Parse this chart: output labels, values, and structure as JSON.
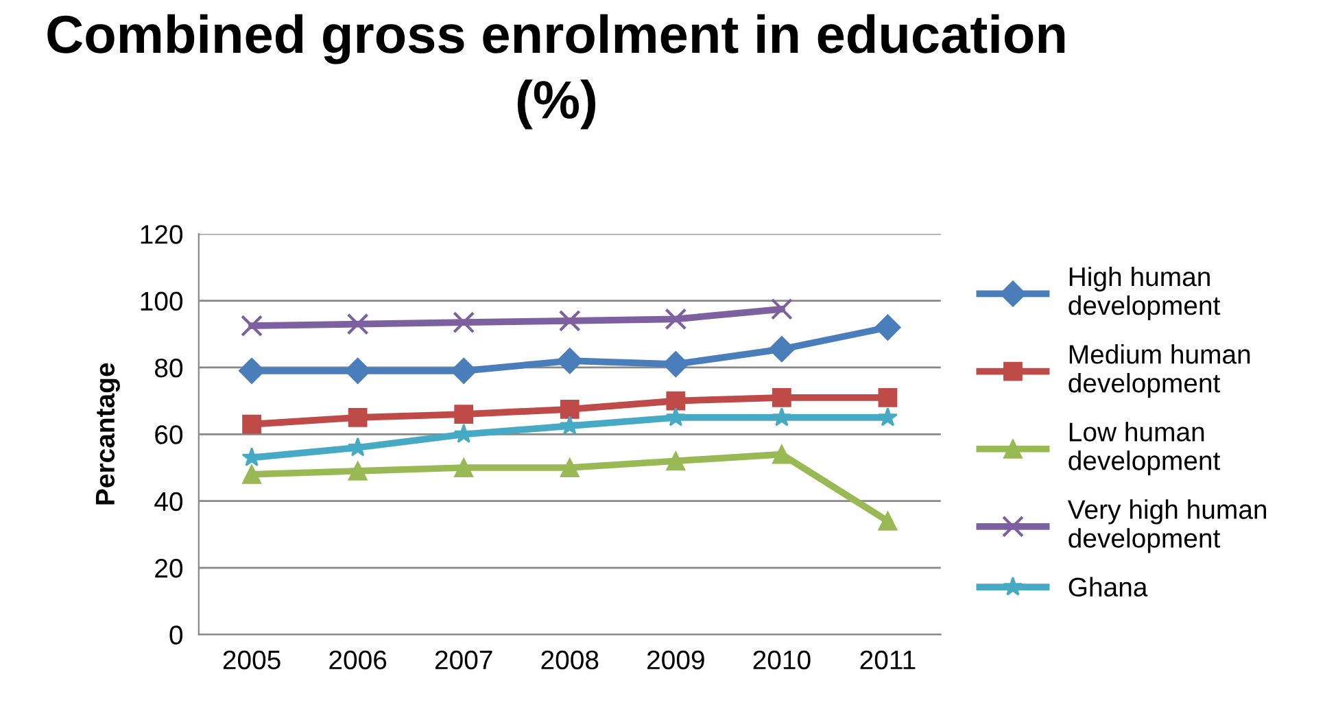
{
  "chart_data": {
    "type": "line",
    "title": "Combined gross enrolment in education (%)",
    "ylabel": "Percantage",
    "categories": [
      "2005",
      "2006",
      "2007",
      "2008",
      "2009",
      "2010",
      "2011"
    ],
    "ylim": [
      0,
      120
    ],
    "yticks": [
      0,
      20,
      40,
      60,
      80,
      100,
      120
    ],
    "grid": "y",
    "legend": "right",
    "line_style": "solid",
    "series": [
      {
        "name": "High human development",
        "color": "#4a7ebb",
        "marker": "diamond",
        "values": [
          79,
          79,
          79,
          82,
          81,
          85.5,
          92
        ]
      },
      {
        "name": "Medium human development",
        "color": "#be4b48",
        "marker": "square",
        "values": [
          63,
          65,
          66,
          67.5,
          70,
          71,
          71
        ]
      },
      {
        "name": "Low human development",
        "color": "#98b954",
        "marker": "triangle",
        "values": [
          48,
          49,
          50,
          50,
          52,
          54,
          34
        ]
      },
      {
        "name": "Very high human development",
        "color": "#7d60a0",
        "marker": "cross",
        "values": [
          92.5,
          93,
          93.5,
          94,
          94.5,
          97.5,
          null
        ]
      },
      {
        "name": "Ghana",
        "color": "#46aac5",
        "marker": "star",
        "values": [
          53,
          56,
          60,
          62.5,
          65,
          65,
          65
        ]
      }
    ]
  }
}
